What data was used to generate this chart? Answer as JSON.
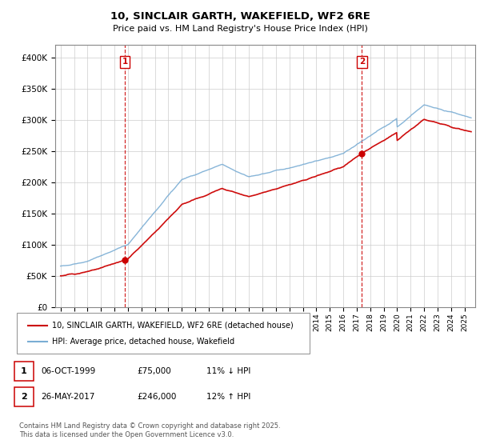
{
  "title_line1": "10, SINCLAIR GARTH, WAKEFIELD, WF2 6RE",
  "title_line2": "Price paid vs. HM Land Registry's House Price Index (HPI)",
  "legend_property": "10, SINCLAIR GARTH, WAKEFIELD, WF2 6RE (detached house)",
  "legend_hpi": "HPI: Average price, detached house, Wakefield",
  "annotation1_date": "06-OCT-1999",
  "annotation1_price": "£75,000",
  "annotation1_hpi": "11% ↓ HPI",
  "annotation2_date": "26-MAY-2017",
  "annotation2_price": "£246,000",
  "annotation2_hpi": "12% ↑ HPI",
  "footnote_line1": "Contains HM Land Registry data © Crown copyright and database right 2025.",
  "footnote_line2": "This data is licensed under the Open Government Licence v3.0.",
  "property_color": "#cc0000",
  "hpi_color": "#7aadd4",
  "vline_color": "#cc0000",
  "grid_color": "#cccccc",
  "marker1_x": 1999.77,
  "marker1_y": 75000,
  "marker2_x": 2017.39,
  "marker2_y": 246000,
  "ylim_min": 0,
  "ylim_max": 420000,
  "yticks": [
    0,
    50000,
    100000,
    150000,
    200000,
    250000,
    300000,
    350000,
    400000
  ],
  "ytick_labels": [
    "£0",
    "£50K",
    "£100K",
    "£150K",
    "£200K",
    "£250K",
    "£300K",
    "£350K",
    "£400K"
  ],
  "xlim_min": 1994.6,
  "xlim_max": 2025.8
}
